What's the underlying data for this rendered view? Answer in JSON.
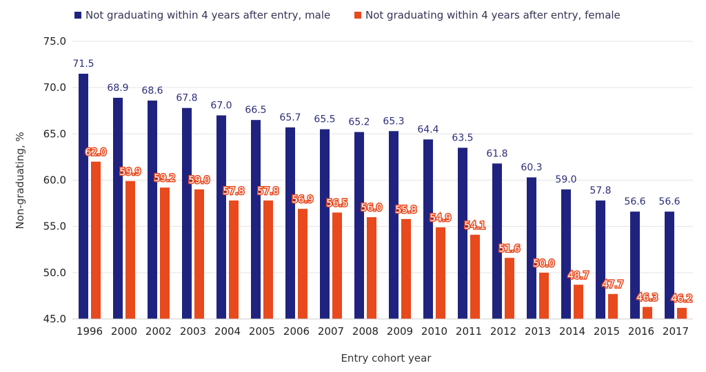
{
  "chart_data": {
    "type": "bar",
    "categories": [
      "1996",
      "2000",
      "2002",
      "2003",
      "2004",
      "2005",
      "2006",
      "2007",
      "2008",
      "2009",
      "2010",
      "2011",
      "2012",
      "2013",
      "2014",
      "2015",
      "2016",
      "2017"
    ],
    "series": [
      {
        "name": "Not graduating within 4 years after entry, male",
        "color": "#1f237f",
        "values": [
          71.5,
          68.9,
          68.6,
          67.8,
          67.0,
          66.5,
          65.7,
          65.5,
          65.2,
          65.3,
          64.4,
          63.5,
          61.8,
          60.3,
          59.0,
          57.8,
          56.6,
          56.6
        ]
      },
      {
        "name": "Not graduating within 4 years after entry, female",
        "color": "#e8491d",
        "values": [
          62.0,
          59.9,
          59.2,
          59.0,
          57.8,
          57.8,
          56.9,
          56.5,
          56.0,
          55.8,
          54.9,
          54.1,
          51.6,
          50.0,
          48.7,
          47.7,
          46.3,
          46.2
        ]
      }
    ],
    "xlabel": "Entry cohort year",
    "ylabel": "Non-graduating, %",
    "ylim": [
      45,
      75
    ],
    "yticks": [
      "45.0",
      "50.0",
      "55.0",
      "60.0",
      "65.0",
      "70.0",
      "75.0"
    ],
    "value_labels_male": [
      "71.5",
      "68.9",
      "68.6",
      "67.8",
      "67.0",
      "66.5",
      "65.7",
      "65.5",
      "65.2",
      "65.3",
      "64.4",
      "63.5",
      "61.8",
      "60.3",
      "59.0",
      "57.8",
      "56.6",
      "56.6"
    ],
    "value_labels_female": [
      "62.0",
      "59.9",
      "59.2",
      "59.0",
      "57.8",
      "57.8",
      "56.9",
      "56.5",
      "56.0",
      "55.8",
      "54.9",
      "54.1",
      "51.6",
      "50.0",
      "48.7",
      "47.7",
      "46.3",
      "46.2"
    ],
    "legend_position": "top"
  }
}
